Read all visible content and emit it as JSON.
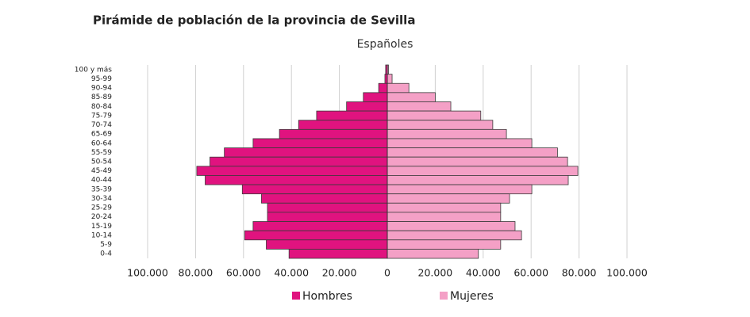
{
  "chart_data": {
    "type": "population-pyramid",
    "title": "Pirámide de población de la provincia de Sevilla",
    "subtitle": "Españoles",
    "categories": [
      "100 y más",
      "95-99",
      "90-94",
      "85-89",
      "80-84",
      "75-79",
      "70-74",
      "65-69",
      "60-64",
      "55-59",
      "50-54",
      "45-49",
      "40-44",
      "35-39",
      "30-34",
      "25-29",
      "20-24",
      "15-19",
      "10-14",
      "5-9",
      "0-4"
    ],
    "series": [
      {
        "name": "Hombres",
        "color": "#e0137f",
        "values": [
          700,
          1000,
          3600,
          10000,
          17000,
          29500,
          37000,
          45000,
          56000,
          68000,
          74000,
          79500,
          76000,
          60500,
          52500,
          50000,
          50000,
          56000,
          59500,
          50500,
          41000
        ]
      },
      {
        "name": "Mujeres",
        "color": "#f4a0c6",
        "values": [
          500,
          2000,
          9000,
          20000,
          26500,
          39000,
          44000,
          49700,
          60300,
          71000,
          75200,
          79500,
          75500,
          60300,
          51000,
          47300,
          47300,
          53300,
          56000,
          47300,
          38000
        ]
      }
    ],
    "xlim": [
      -100000,
      100000
    ],
    "xticks": [
      {
        "value": -100000,
        "label": "100.000"
      },
      {
        "value": -80000,
        "label": "80.000"
      },
      {
        "value": -60000,
        "label": "60.000"
      },
      {
        "value": -40000,
        "label": "40.000"
      },
      {
        "value": -20000,
        "label": "20.000"
      },
      0,
      {
        "value": 20000,
        "label": "20.000"
      },
      {
        "value": 40000,
        "label": "40.000"
      },
      {
        "value": 60000,
        "label": "60.000"
      },
      {
        "value": 80000,
        "label": "80.000"
      },
      {
        "value": 100000,
        "label": "100.000"
      }
    ],
    "grid": true,
    "legend": "bottom"
  }
}
